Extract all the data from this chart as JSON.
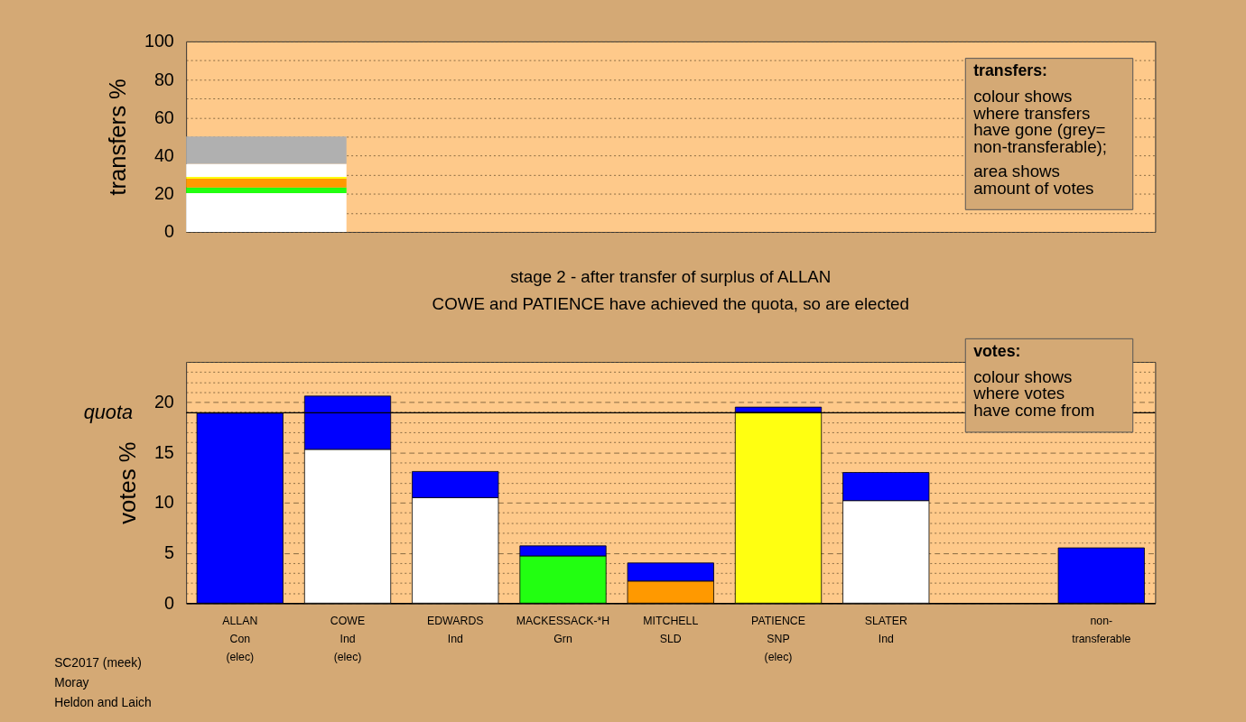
{
  "chart_data": [
    {
      "type": "bar",
      "stacked": true,
      "categories": [
        null
      ],
      "ylabel": "transfers %",
      "ylim": [
        0,
        100
      ],
      "yticks": [
        0,
        {
          "value": 10,
          "label": null
        },
        20,
        {
          "value": 30,
          "label": null
        },
        40,
        {
          "value": 50,
          "label": null
        },
        60,
        {
          "value": 70,
          "label": null
        },
        80,
        {
          "value": 90,
          "label": null
        },
        100
      ],
      "grid": "y",
      "tick_labels": "y",
      "annotations": [
        "transfers:",
        "colour shows\nwhere transfers\nhave gone (grey=\nnon-transferable);",
        "area shows\namount of votes"
      ],
      "series": [
        {
          "color": "#ffffff",
          "values": [
            20.4
          ]
        },
        {
          "color": "#22ff11",
          "values": [
            2.9
          ]
        },
        {
          "color": "#ff9900",
          "values": [
            4.7
          ]
        },
        {
          "color": "#ffff11",
          "values": [
            0.9
          ]
        },
        {
          "color": "#ffffff",
          "values": [
            6.9
          ]
        },
        {
          "color": "#b0b0b0",
          "values": [
            14.3
          ]
        }
      ]
    },
    {
      "type": "bar",
      "stacked": true,
      "title": "stage 2 - after transfer of surplus of ALLAN",
      "subtitle": "COWE and PATIENCE have achieved the quota, so are elected",
      "categories": [
        "ALLAN\nCon\n(elec)",
        "COWE\nInd\n(elec)",
        "EDWARDS\nInd",
        "MACKESSACK-*H\nGrn",
        "MITCHELL\nSLD",
        "PATIENCE\nSNP\n(elec)",
        "SLATER\nInd",
        null,
        "non-\ntransferable"
      ],
      "ylabel": "votes %",
      "ylim": [
        0,
        24
      ],
      "yticks": [
        0,
        {
          "value": 1,
          "label": null
        },
        {
          "value": 2,
          "label": null
        },
        {
          "value": 3,
          "label": null
        },
        {
          "value": 4,
          "label": null
        },
        5,
        {
          "value": 6,
          "label": null
        },
        {
          "value": 7,
          "label": null
        },
        {
          "value": 8,
          "label": null
        },
        {
          "value": 9,
          "label": null
        },
        10,
        {
          "value": 11,
          "label": null
        },
        {
          "value": 12,
          "label": null
        },
        {
          "value": 13,
          "label": null
        },
        {
          "value": 14,
          "label": null
        },
        15,
        {
          "value": 16,
          "label": null
        },
        {
          "value": 17,
          "label": null
        },
        {
          "value": 18,
          "label": null
        },
        {
          "value": 19,
          "label": null
        },
        20,
        {
          "value": 21,
          "label": null
        },
        {
          "value": 22,
          "label": null
        },
        {
          "value": 23,
          "label": null
        },
        {
          "value": 24,
          "label": null
        }
      ],
      "grid": "y",
      "ref_lines": [
        {
          "axis": "y",
          "value": 18.94,
          "label": "quota",
          "color": "#000000"
        }
      ],
      "annotations": [
        "votes:",
        "colour shows\nwhere votes\nhave come from",
        "SC2017 (meek)",
        "Moray",
        "Heldon and Laich"
      ],
      "series": [
        {
          "colors": [
            "#0000ff",
            "#ffffff",
            "#ffffff",
            "#22ff11",
            "#ff9900",
            "#ffff11",
            "#ffffff",
            null,
            "#0000ff"
          ],
          "values": [
            18.9,
            15.3,
            10.5,
            4.7,
            2.2,
            19.0,
            10.2,
            null,
            5.5
          ]
        },
        {
          "color": "#0000ff",
          "values": [
            null,
            5.3,
            2.6,
            1.0,
            1.8,
            0.5,
            2.8,
            null,
            null
          ]
        }
      ]
    }
  ]
}
